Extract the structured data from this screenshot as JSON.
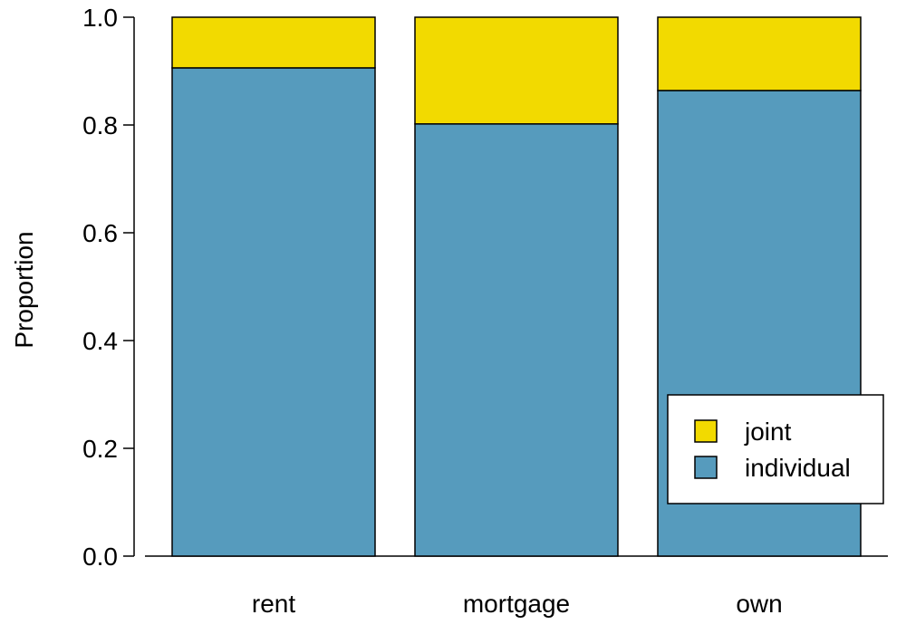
{
  "chart_data": {
    "type": "bar",
    "stacked": true,
    "categories": [
      "rent",
      "mortgage",
      "own"
    ],
    "series": [
      {
        "name": "individual",
        "values": [
          0.906,
          0.802,
          0.864
        ]
      },
      {
        "name": "joint",
        "values": [
          0.094,
          0.198,
          0.136
        ]
      }
    ],
    "title": "",
    "xlabel": "",
    "ylabel": "Proportion",
    "ylim": [
      0,
      1
    ],
    "yticks": [
      "0.0",
      "0.2",
      "0.4",
      "0.6",
      "0.8",
      "1.0"
    ],
    "grid": false,
    "legend": {
      "position": "bottom-right",
      "entries": [
        "joint",
        "individual"
      ]
    },
    "colors": {
      "individual": "#569BBD",
      "joint": "#F2DA00"
    }
  }
}
